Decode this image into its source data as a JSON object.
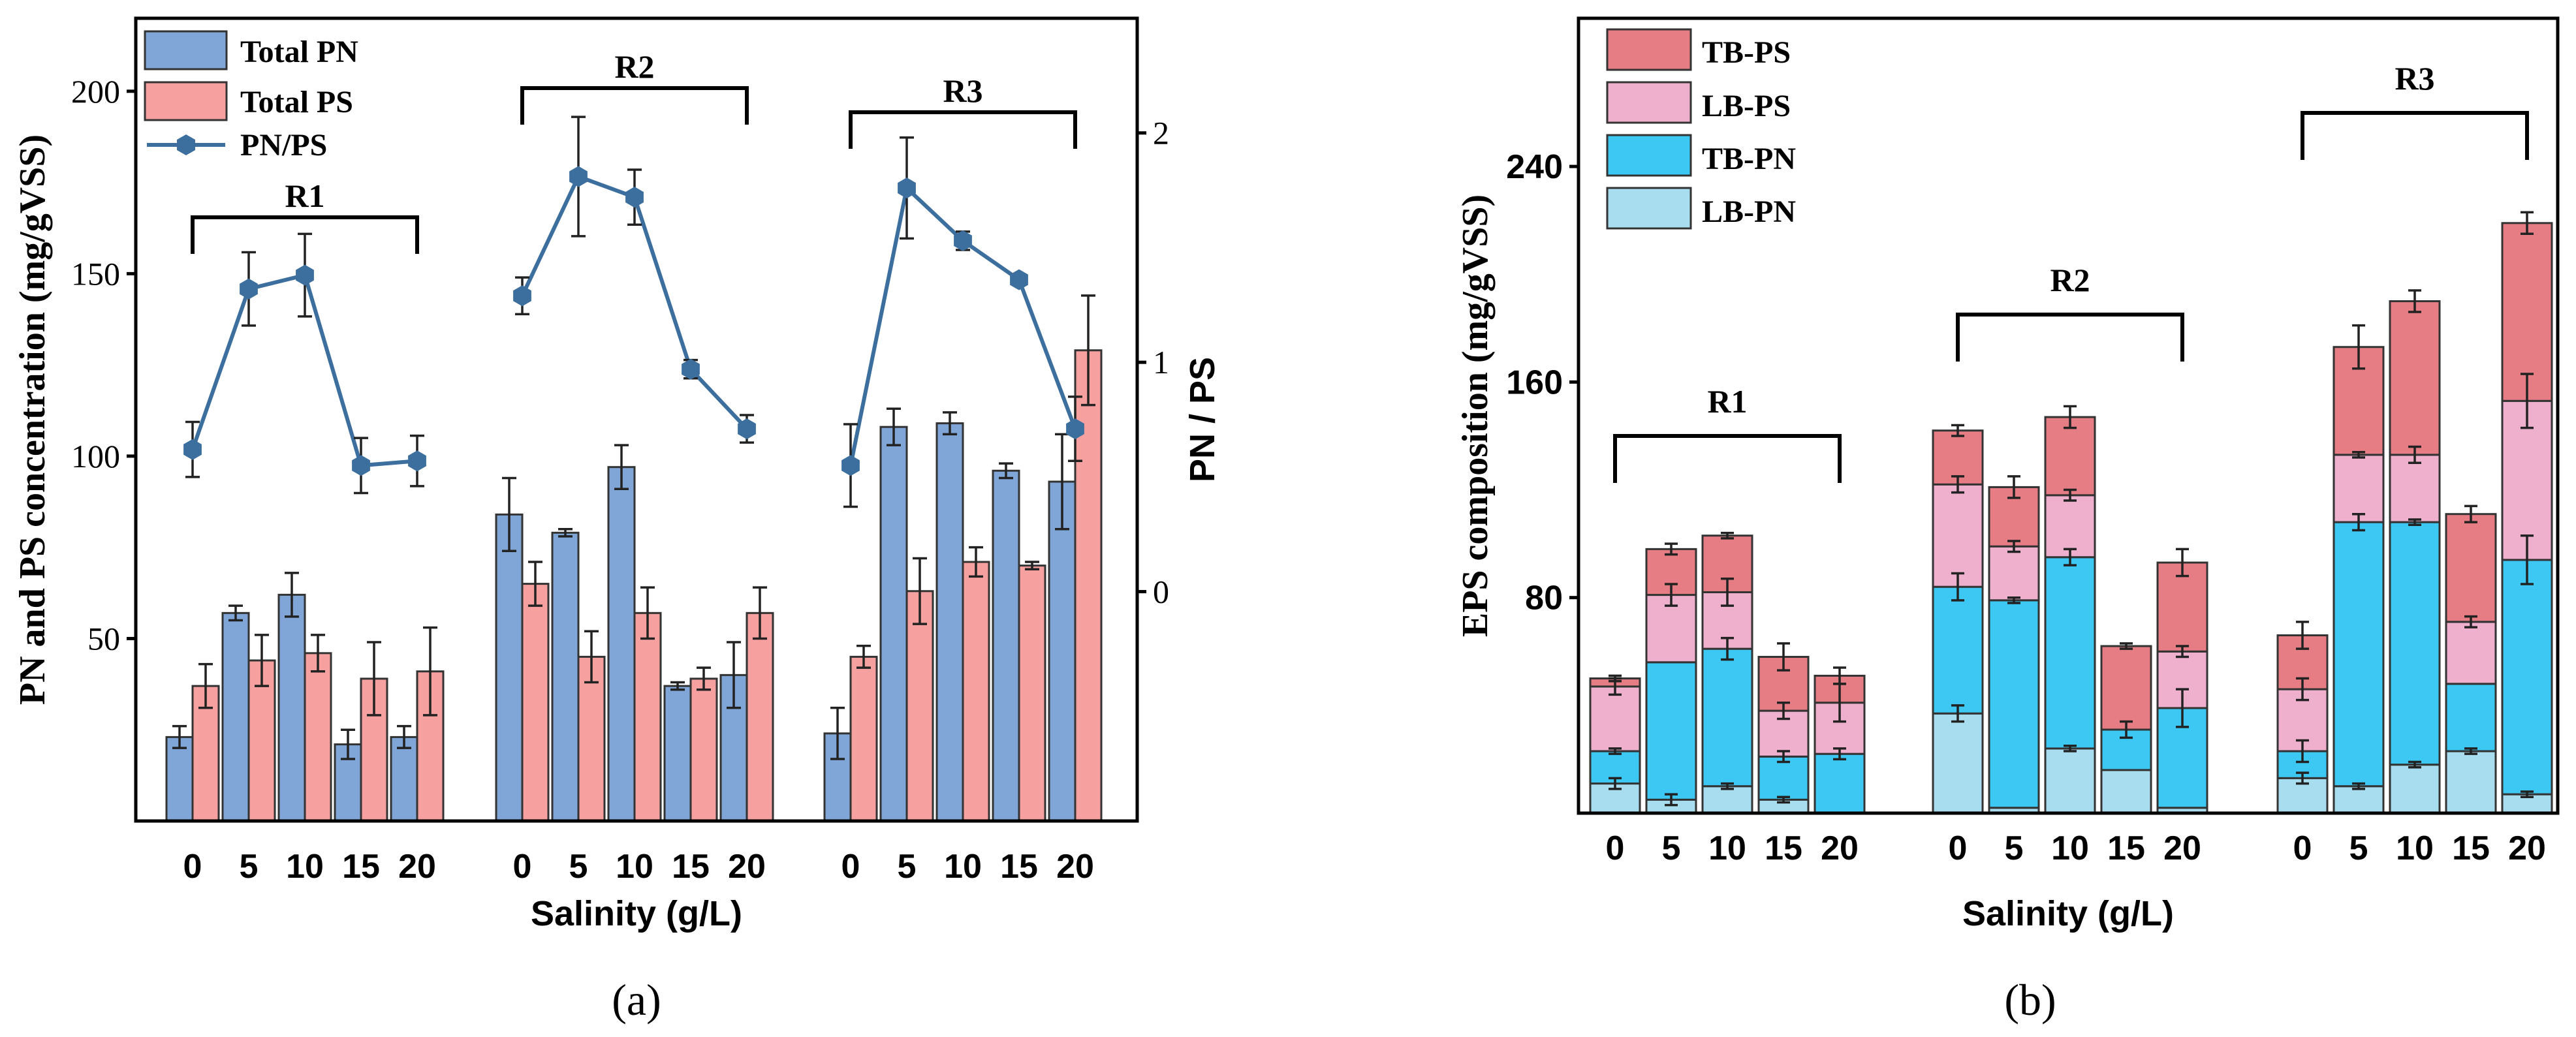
{
  "chart_data": [
    {
      "type": "bar",
      "panel_label": "(a)",
      "xlabel": "Salinity (g/L)",
      "ylabel": "PN and PS concentration (mg/gVSS)",
      "y2label": "PN / PS",
      "ylim": [
        0,
        220
      ],
      "y2lim": [
        -1.0,
        2.5
      ],
      "yticks": [
        "50",
        "100",
        "150",
        "200"
      ],
      "y2ticks": [
        "0",
        "1",
        "2"
      ],
      "groups": [
        "R1",
        "R2",
        "R3"
      ],
      "categories": [
        "0",
        "5",
        "10",
        "15",
        "20"
      ],
      "legend": [
        "Total PN",
        "Total PS",
        "PN/PS"
      ],
      "colors": {
        "pn": "#7fa6d6",
        "ps": "#f7a0a0",
        "ratio": "#3c6e9e"
      },
      "series": [
        {
          "name": "Total PN",
          "values": [
            [
              23,
              57,
              62,
              21,
              23
            ],
            [
              84,
              79,
              97,
              37,
              40
            ],
            [
              24,
              108,
              109,
              96,
              93
            ]
          ],
          "errors": [
            [
              3,
              2,
              6,
              4,
              3
            ],
            [
              10,
              1,
              6,
              1,
              9
            ],
            [
              7,
              5,
              3,
              2,
              13
            ]
          ]
        },
        {
          "name": "Total PS",
          "values": [
            [
              37,
              44,
              46,
              39,
              41
            ],
            [
              65,
              45,
              57,
              39,
              57
            ],
            [
              45,
              63,
              71,
              70,
              129
            ]
          ],
          "errors": [
            [
              6,
              7,
              5,
              10,
              12
            ],
            [
              6,
              7,
              7,
              3,
              7
            ],
            [
              3,
              9,
              4,
              1,
              15
            ]
          ]
        },
        {
          "name": "PN/PS",
          "axis": "right",
          "values": [
            [
              0.62,
              1.32,
              1.38,
              0.55,
              0.57
            ],
            [
              1.29,
              1.81,
              1.72,
              0.97,
              0.71
            ],
            [
              0.55,
              1.76,
              1.53,
              1.36,
              0.71
            ]
          ],
          "errors": [
            [
              0.12,
              0.16,
              0.18,
              0.12,
              0.11
            ],
            [
              0.08,
              0.26,
              0.12,
              0.04,
              0.06
            ],
            [
              0.18,
              0.22,
              0.04,
              0.02,
              0.14
            ]
          ]
        }
      ]
    },
    {
      "type": "bar",
      "stacked": true,
      "panel_label": "(b)",
      "xlabel": "Salinity (g/L)",
      "ylabel": "EPS composition (mg/gVSS)",
      "ylim": [
        0,
        295
      ],
      "yticks": [
        "80",
        "160",
        "240"
      ],
      "groups": [
        "R1",
        "R2",
        "R3"
      ],
      "categories": [
        "0",
        "5",
        "10",
        "15",
        "20"
      ],
      "legend": [
        "TB-PS",
        "LB-PS",
        "TB-PN",
        "LB-PN"
      ],
      "colors": {
        "lbpn": "#a8dcef",
        "tbpn": "#3cc8f2",
        "lbps": "#eeb0cc",
        "tbps": "#e67d85"
      },
      "series": [
        {
          "name": "LB-PN",
          "values": [
            [
              11,
              5,
              10,
              5,
              0
            ],
            [
              37,
              2,
              24,
              16,
              2
            ],
            [
              13,
              10,
              18,
              23,
              7
            ]
          ],
          "errors": [
            [
              2,
              2,
              1,
              1,
              0
            ],
            [
              3,
              0,
              1,
              0,
              0
            ],
            [
              2,
              1,
              1,
              1,
              1
            ]
          ]
        },
        {
          "name": "TB-PN",
          "values": [
            [
              12,
              51,
              51,
              16,
              22
            ],
            [
              47,
              77,
              71,
              15,
              37
            ],
            [
              10,
              98,
              90,
              25,
              87
            ]
          ],
          "errors": [
            [
              1,
              0,
              4,
              2,
              2
            ],
            [
              5,
              1,
              3,
              3,
              7
            ],
            [
              4,
              3,
              1,
              0,
              9
            ]
          ]
        },
        {
          "name": "LB-PS",
          "values": [
            [
              24,
              25,
              21,
              17,
              19
            ],
            [
              38,
              20,
              23,
              0,
              21
            ],
            [
              23,
              25,
              25,
              23,
              59
            ]
          ],
          "errors": [
            [
              3,
              4,
              5,
              3,
              7
            ],
            [
              3,
              2,
              2,
              0,
              2
            ],
            [
              4,
              1,
              3,
              2,
              10
            ]
          ]
        },
        {
          "name": "TB-PS",
          "values": [
            [
              3,
              17,
              21,
              20,
              10
            ],
            [
              20,
              22,
              29,
              31,
              33
            ],
            [
              20,
              40,
              57,
              40,
              66
            ]
          ],
          "errors": [
            [
              1,
              2,
              1,
              5,
              3
            ],
            [
              2,
              4,
              4,
              1,
              5
            ],
            [
              5,
              8,
              4,
              3,
              4
            ]
          ]
        }
      ]
    }
  ]
}
